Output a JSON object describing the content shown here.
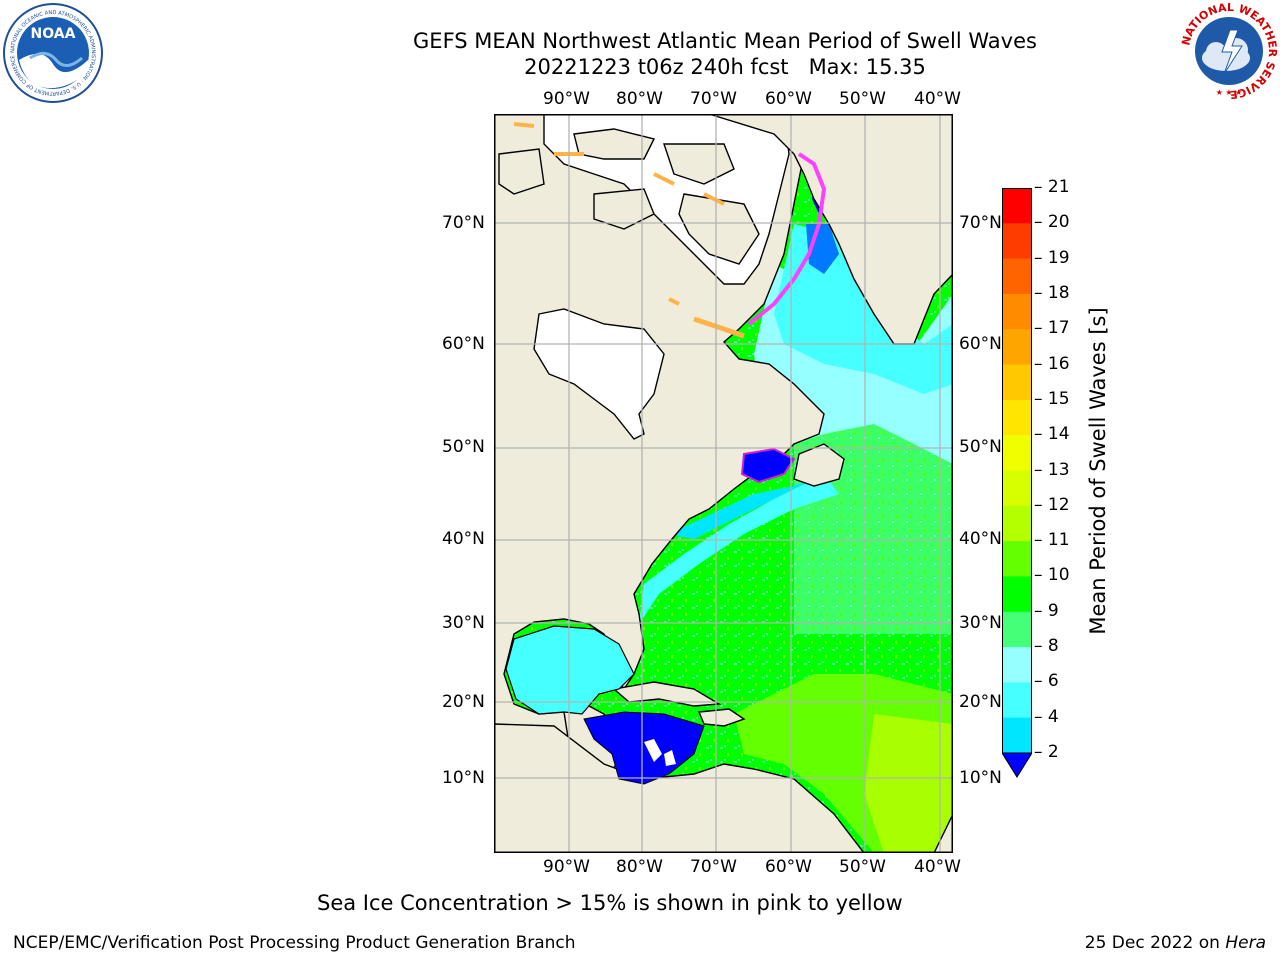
{
  "header": {
    "title_line1": "GEFS MEAN Northwest Atlantic Mean Period of Swell Waves",
    "title_line2": "20221223 t06z 240h fcst   Max: 15.35"
  },
  "logos": {
    "left": "NOAA",
    "left_ring": "NATIONAL OCEANIC AND ATMOSPHERIC ADMINISTRATION · U.S. DEPARTMENT OF COMMERCE",
    "right_ring": "NATIONAL WEATHER SERVICE"
  },
  "map": {
    "lon_labels": [
      "90°W",
      "80°W",
      "70°W",
      "60°W",
      "50°W",
      "40°W"
    ],
    "lat_labels": [
      "70°N",
      "60°N",
      "50°N",
      "40°N",
      "30°N",
      "20°N",
      "10°N"
    ],
    "colors": {
      "land": "#efecdc",
      "ice_free_land": "#ffffff",
      "grid": "#b3b3b3"
    }
  },
  "colorbar": {
    "label": "Mean Period of Swell Waves [s]",
    "ticks": [
      "21",
      "20",
      "19",
      "18",
      "17",
      "16",
      "15",
      "14",
      "13",
      "12",
      "11",
      "10",
      "9",
      "8",
      "6",
      "4",
      "2"
    ],
    "colors": [
      "#ff0000",
      "#ff3c00",
      "#ff6400",
      "#ff8c00",
      "#ffa500",
      "#ffc800",
      "#ffe600",
      "#f0ff00",
      "#d7ff00",
      "#b4ff00",
      "#64ff00",
      "#00ff00",
      "#46ff78",
      "#96ffff",
      "#46ffff",
      "#00e6ff",
      "#0078ff"
    ],
    "extend_color": "#0000ff"
  },
  "caption": "Sea Ice Concentration > 15% is shown in pink to yellow",
  "footer": {
    "left": "NCEP/EMC/Verification Post Processing Product Generation Branch",
    "date": "25 Dec 2022 on ",
    "system": "Hera"
  }
}
